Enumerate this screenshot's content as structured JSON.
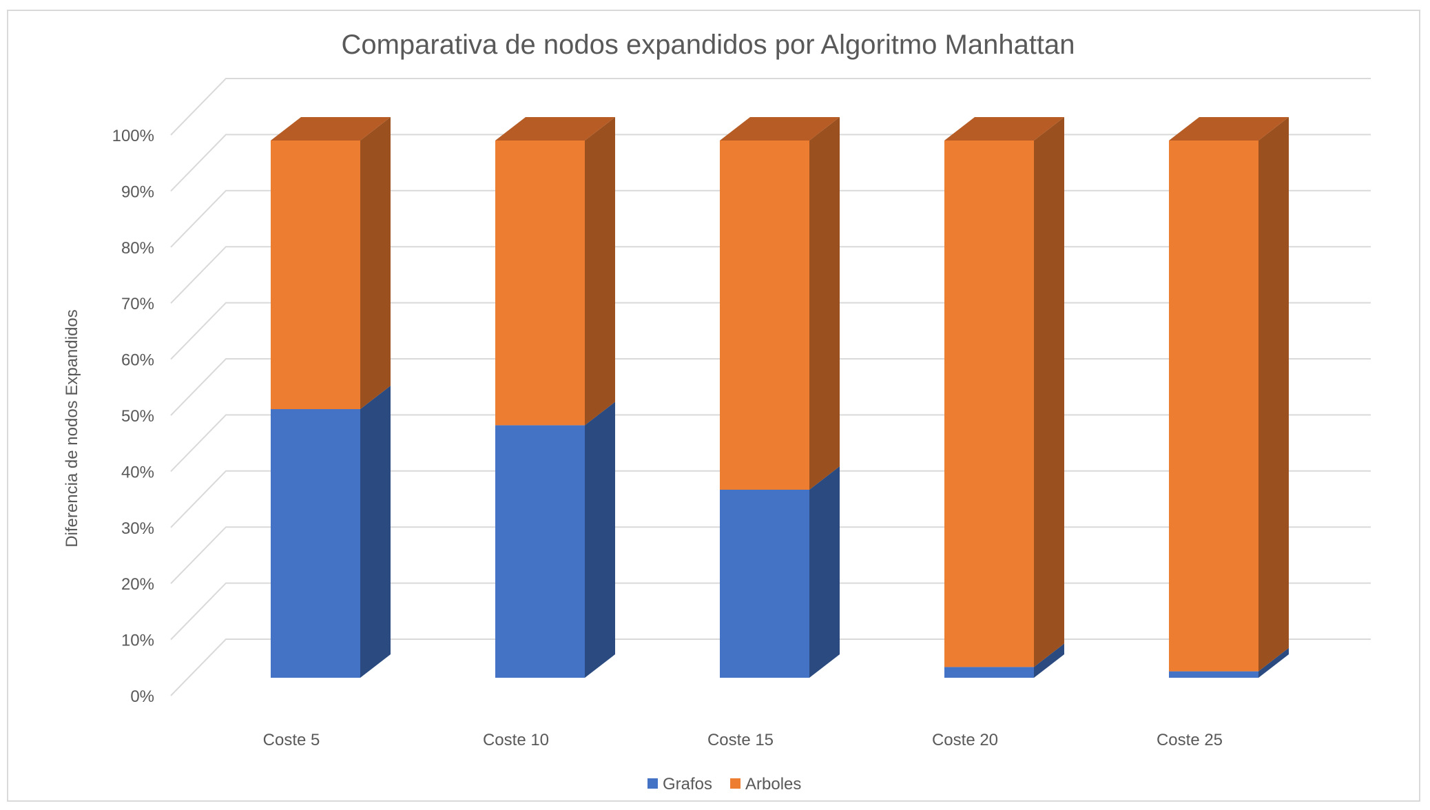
{
  "chart_data": {
    "type": "bar",
    "stacked": true,
    "percent_stacked": true,
    "three_d": true,
    "title": "Comparativa de nodos expandidos por Algoritmo Manhattan",
    "xlabel": "",
    "ylabel": "Diferencia de nodos Expandidos",
    "categories": [
      "Coste 5",
      "Coste 10",
      "Coste 15",
      "Coste 20",
      "Coste 25"
    ],
    "y_ticks": [
      "0%",
      "10%",
      "20%",
      "30%",
      "40%",
      "50%",
      "60%",
      "70%",
      "80%",
      "90%",
      "100%"
    ],
    "ylim": [
      0,
      100
    ],
    "grid": true,
    "legend_position": "bottom",
    "series": [
      {
        "name": "Grafos",
        "values": [
          50,
          47,
          35,
          2,
          1.2
        ],
        "color": "#4472c4",
        "side_color": "#2a4a80",
        "top_color": "#3a64b0"
      },
      {
        "name": "Arboles",
        "values": [
          50,
          53,
          65,
          98,
          98.8
        ],
        "color": "#ed7d31",
        "side_color": "#9a501f",
        "top_color": "#b65c24"
      }
    ]
  }
}
